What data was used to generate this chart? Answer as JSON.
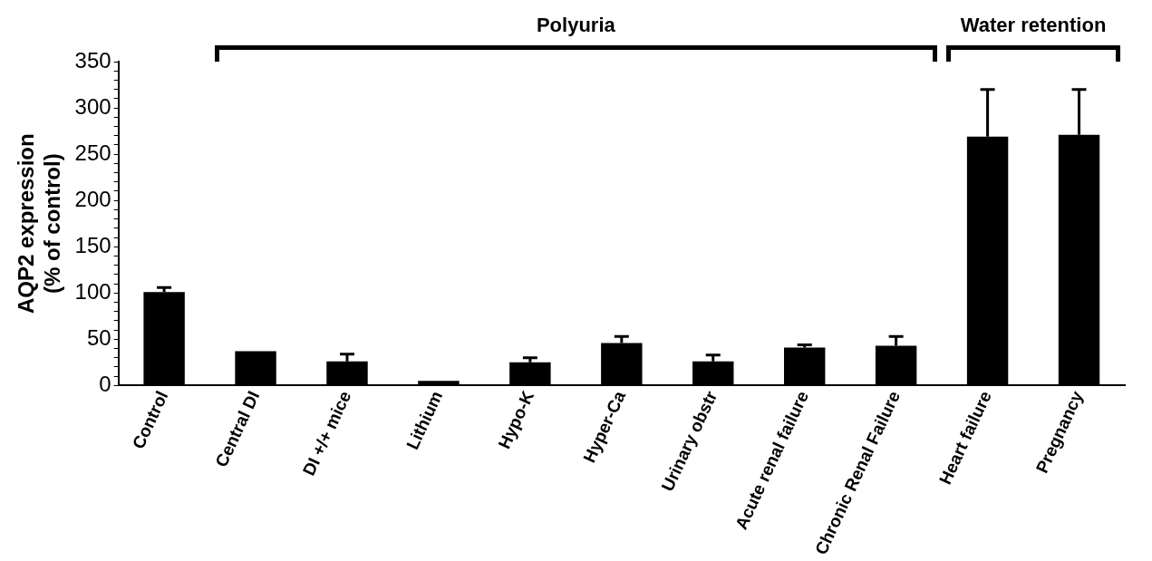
{
  "chart_data": {
    "type": "bar",
    "ylabel": "AQP2 expression\n(% of control)",
    "categories": [
      "Control",
      "Central DI",
      "DI +/+ mice",
      "Lithium",
      "Hypo-K",
      "Hyper-Ca",
      "Urinary obstr",
      "Acute renal failure",
      "Chronic Renal Failure",
      "Heart failure",
      "Pregnancy"
    ],
    "values": [
      101,
      37,
      26,
      5,
      25,
      46,
      26,
      41,
      43,
      269,
      271
    ],
    "errors": [
      [
        101,
        106
      ],
      null,
      [
        26,
        34
      ],
      null,
      [
        25,
        30
      ],
      [
        46,
        53
      ],
      [
        26,
        33
      ],
      [
        41,
        44
      ],
      [
        43,
        53
      ],
      [
        269,
        320
      ],
      [
        271,
        320
      ]
    ],
    "color": "#000000",
    "ylim": [
      0,
      350
    ],
    "yticks": [
      0,
      {
        "value": 10,
        "label": null
      },
      {
        "value": 20,
        "label": null
      },
      {
        "value": 30,
        "label": null
      },
      {
        "value": 40,
        "label": null
      },
      50,
      {
        "value": 60,
        "label": null
      },
      {
        "value": 70,
        "label": null
      },
      {
        "value": 80,
        "label": null
      },
      {
        "value": 90,
        "label": null
      },
      100,
      {
        "value": 110,
        "label": null
      },
      {
        "value": 120,
        "label": null
      },
      {
        "value": 130,
        "label": null
      },
      {
        "value": 140,
        "label": null
      },
      150,
      {
        "value": 160,
        "label": null
      },
      {
        "value": 170,
        "label": null
      },
      {
        "value": 180,
        "label": null
      },
      {
        "value": 190,
        "label": null
      },
      200,
      {
        "value": 210,
        "label": null
      },
      {
        "value": 220,
        "label": null
      },
      {
        "value": 230,
        "label": null
      },
      {
        "value": 240,
        "label": null
      },
      250,
      {
        "value": 260,
        "label": null
      },
      {
        "value": 270,
        "label": null
      },
      {
        "value": 280,
        "label": null
      },
      {
        "value": 290,
        "label": null
      },
      300,
      {
        "value": 310,
        "label": null
      },
      {
        "value": 320,
        "label": null
      },
      {
        "value": 330,
        "label": null
      },
      {
        "value": 340,
        "label": null
      },
      350
    ],
    "annotations": [
      "Polyuria",
      "Water retention"
    ],
    "grid": false,
    "legend": false
  }
}
